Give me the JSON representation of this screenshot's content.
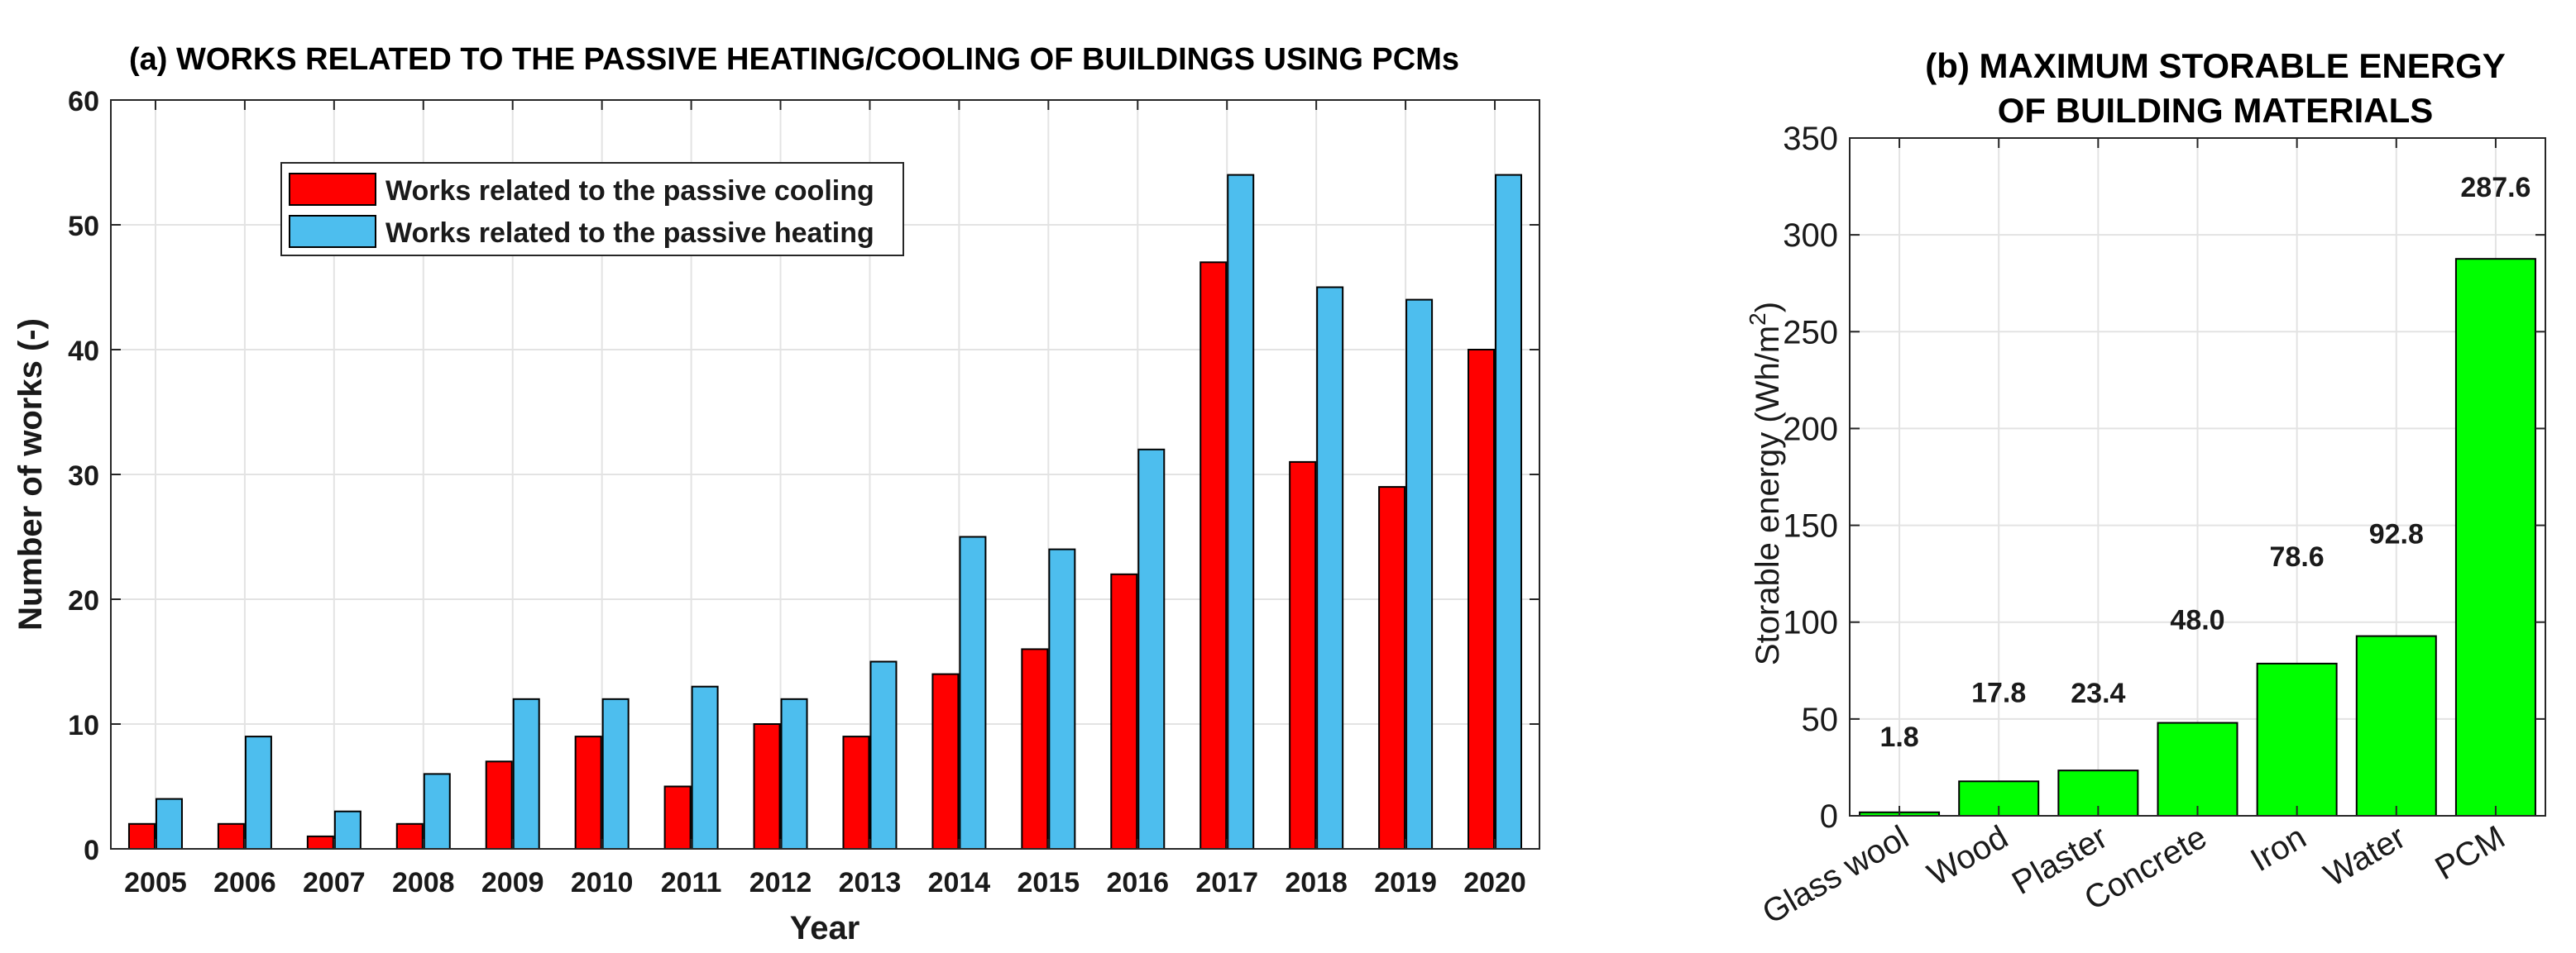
{
  "chart_data": [
    {
      "type": "bar",
      "title": "(a) WORKS RELATED TO THE PASSIVE HEATING/COOLING OF BUILDINGS USING PCMs",
      "xlabel": "Year",
      "ylabel": "Number of works (-)",
      "ylim": [
        0,
        60
      ],
      "yticks": [
        "0",
        "10",
        "20",
        "30",
        "40",
        "50",
        "60"
      ],
      "categories": [
        "2005",
        "2006",
        "2007",
        "2008",
        "2009",
        "2010",
        "2011",
        "2012",
        "2013",
        "2014",
        "2015",
        "2016",
        "2017",
        "2018",
        "2019",
        "2020"
      ],
      "series": [
        {
          "name": "Works related to the passive cooling",
          "color": "#ff0000",
          "values": [
            2,
            2,
            1,
            2,
            7,
            9,
            5,
            10,
            9,
            14,
            16,
            22,
            47,
            31,
            29,
            40
          ]
        },
        {
          "name": "Works related to the passive heating",
          "color": "#4dbeee",
          "values": [
            4,
            9,
            3,
            6,
            12,
            12,
            13,
            12,
            15,
            25,
            24,
            32,
            54,
            45,
            44,
            54
          ]
        }
      ],
      "legend": "top-left",
      "grid": true
    },
    {
      "type": "bar",
      "title_lines": [
        "(b) MAXIMUM STORABLE ENERGY",
        "OF BUILDING MATERIALS"
      ],
      "ylabel": "Storable energy (Wh/m",
      "ylabel_sup": "2",
      "ylabel_end": ")",
      "ylim": [
        0,
        350
      ],
      "yticks": [
        "0",
        "50",
        "100",
        "150",
        "200",
        "250",
        "300",
        "350"
      ],
      "categories": [
        "Glass wool",
        "Wood",
        "Plaster",
        "Concrete",
        "Iron",
        "Water",
        "PCM"
      ],
      "values": [
        1.8,
        17.8,
        23.4,
        48.0,
        78.6,
        92.8,
        287.6
      ],
      "data_labels": [
        "1.8",
        "17.8",
        "23.4",
        "48.0",
        "78.6",
        "92.8",
        "287.6"
      ],
      "color": "#00ff00",
      "grid": true
    }
  ]
}
